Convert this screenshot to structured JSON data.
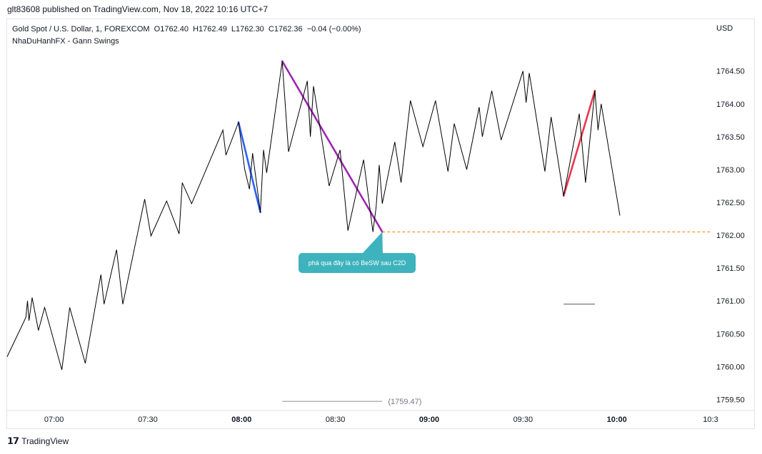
{
  "header": {
    "published_by": "glt83608 published on TradingView.com, Nov 18, 2022 10:16 UTC+7"
  },
  "legend": {
    "symbol_line": "Gold Spot / U.S. Dollar, 1, FOREXCOM  O1762.40  H1762.49  L1762.30  C1762.36  −0.04 (−0.00%)",
    "indicator_line": "NhaDuHanhFX - Gann Swings"
  },
  "currency": "USD",
  "footer": {
    "brand": "TradingView"
  },
  "colors": {
    "price_line": "#000000",
    "swing_blue": "#2962ff",
    "swing_purple": "#9c27b0",
    "swing_red": "#e53950",
    "support_line": "#f57c00",
    "annotation_bg": "#3eb3bd"
  },
  "chart_data": {
    "type": "line",
    "y_ticks": [
      "1764.50",
      "1764.00",
      "1763.50",
      "1763.00",
      "1762.50",
      "1762.00",
      "1761.50",
      "1761.00",
      "1760.50",
      "1760.00",
      "1759.50"
    ],
    "x_ticks": [
      "07:00",
      "07:30",
      "08:00",
      "08:30",
      "09:00",
      "09:30",
      "10:00",
      "10:3"
    ],
    "x_ticks_bold": [
      "08:00",
      "09:00",
      "10:00"
    ],
    "ylim": [
      1759.45,
      1765.05
    ],
    "x_unit": "minutes after 06:45",
    "xlim": [
      0,
      225
    ],
    "series": [
      {
        "values": [
          [
            0,
            1760.15
          ],
          [
            6,
            1760.75
          ],
          [
            6.5,
            1761.0
          ],
          [
            7,
            1760.7
          ],
          [
            8,
            1761.05
          ],
          [
            10,
            1760.55
          ],
          [
            12,
            1760.9
          ],
          [
            17.5,
            1759.95
          ],
          [
            20,
            1760.9
          ],
          [
            25,
            1760.05
          ],
          [
            30,
            1761.4
          ],
          [
            31,
            1760.95
          ],
          [
            35,
            1761.78
          ],
          [
            37,
            1760.95
          ],
          [
            44,
            1762.55
          ],
          [
            46,
            1761.99
          ],
          [
            51,
            1762.52
          ],
          [
            55,
            1762.02
          ],
          [
            56,
            1762.8
          ],
          [
            59,
            1762.48
          ],
          [
            69,
            1763.6
          ],
          [
            70,
            1763.22
          ],
          [
            74,
            1763.72
          ],
          [
            76,
            1763.0
          ],
          [
            77.5,
            1762.7
          ],
          [
            78.5,
            1763.25
          ],
          [
            81,
            1762.35
          ],
          [
            82,
            1763.3
          ],
          [
            83,
            1762.95
          ],
          [
            88,
            1764.65
          ],
          [
            90,
            1763.27
          ],
          [
            96,
            1764.35
          ],
          [
            97,
            1763.5
          ],
          [
            98,
            1764.27
          ],
          [
            103,
            1762.75
          ],
          [
            106.5,
            1763.3
          ],
          [
            109,
            1762.07
          ],
          [
            114,
            1763.15
          ],
          [
            117,
            1762.05
          ],
          [
            118,
            1762.42
          ],
          [
            119,
            1763.07
          ],
          [
            120,
            1762.48
          ],
          [
            124,
            1763.42
          ],
          [
            126,
            1762.8
          ],
          [
            129,
            1764.05
          ],
          [
            133,
            1763.35
          ],
          [
            137,
            1764.05
          ],
          [
            141,
            1762.97
          ],
          [
            143,
            1763.7
          ],
          [
            147,
            1763.0
          ],
          [
            151,
            1763.95
          ],
          [
            152,
            1763.5
          ],
          [
            155,
            1764.2
          ],
          [
            158,
            1763.45
          ],
          [
            165,
            1764.5
          ],
          [
            166,
            1764.02
          ],
          [
            167,
            1764.47
          ],
          [
            172,
            1762.97
          ],
          [
            174,
            1763.8
          ],
          [
            178,
            1762.6
          ],
          [
            183,
            1763.85
          ],
          [
            185,
            1762.8
          ],
          [
            188,
            1764.2
          ],
          [
            189,
            1763.6
          ],
          [
            190,
            1764.0
          ],
          [
            196,
            1762.3
          ]
        ]
      }
    ],
    "swings": [
      {
        "color": "blue",
        "points": [
          [
            74,
            1763.72
          ],
          [
            81,
            1762.35
          ]
        ]
      },
      {
        "color": "purple",
        "points": [
          [
            88,
            1764.65
          ],
          [
            120,
            1762.05
          ]
        ]
      },
      {
        "color": "red",
        "points": [
          [
            178,
            1762.6
          ],
          [
            188,
            1764.2
          ]
        ]
      }
    ],
    "support_level": {
      "value": 1762.05,
      "x_from": 120,
      "x_to": 225
    },
    "small_hline": {
      "value": 1760.95,
      "x_from": 178,
      "x_to": 188
    },
    "low_marker": {
      "value_label": "(1759.47)",
      "value": 1759.47,
      "x_from": 88,
      "x_to": 120
    },
    "annotation": {
      "text": "phá qua đây là có BeSW sau C2D",
      "anchor": [
        120,
        1762.05
      ]
    }
  }
}
